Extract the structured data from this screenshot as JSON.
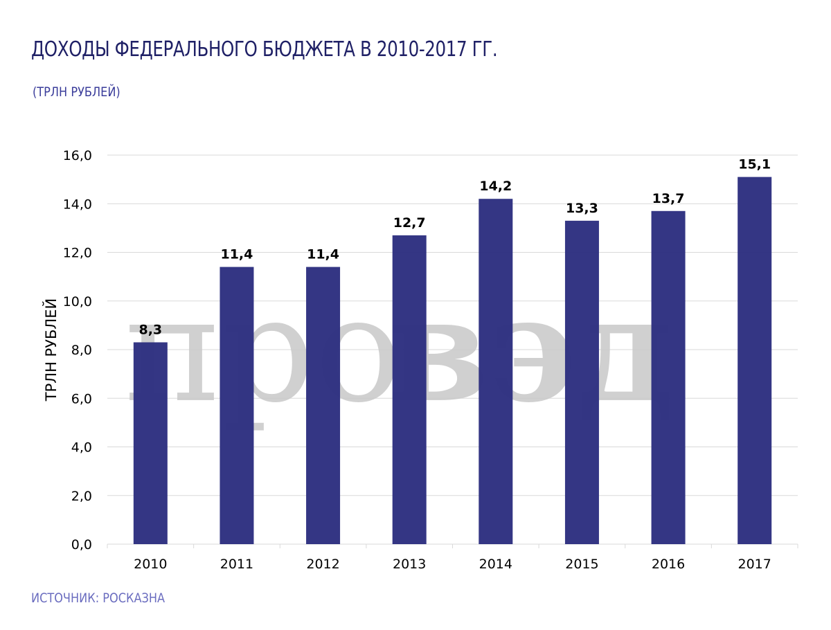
{
  "header": {
    "title": "ДОХОДЫ ФЕДЕРАЛЬНОГО БЮДЖЕТА В 2010-2017 ГГ.",
    "subtitle": "(ТРЛН РУБЛЕЙ)"
  },
  "footer": {
    "source": "ИСТОЧНИК: РОСКАЗНА"
  },
  "watermark": {
    "light": "про",
    "dark": "вэд"
  },
  "colors": {
    "title": "#1f2066",
    "subtitle": "#3a3c9a",
    "source": "#6a6cbf",
    "bar": "#2d2f80",
    "grid": "#d9d9d9",
    "axis_text": "#000000",
    "watermark": "#c8c8c8"
  },
  "chart_data": {
    "type": "bar",
    "categories": [
      "2010",
      "2011",
      "2012",
      "2013",
      "2014",
      "2015",
      "2016",
      "2017"
    ],
    "values": [
      8.3,
      11.4,
      11.4,
      12.7,
      14.2,
      13.3,
      13.7,
      15.1
    ],
    "value_labels": [
      "8,3",
      "11,4",
      "11,4",
      "12,7",
      "14,2",
      "13,3",
      "13,7",
      "15,1"
    ],
    "ylabel": "ТРЛН РУБЛЕЙ",
    "xlabel": "",
    "ylim": [
      0,
      16
    ],
    "yticks": [
      "0,0",
      "2,0",
      "4,0",
      "6,0",
      "8,0",
      "10,0",
      "12,0",
      "14,0",
      "16,0"
    ],
    "grid": true,
    "legend": "none"
  }
}
